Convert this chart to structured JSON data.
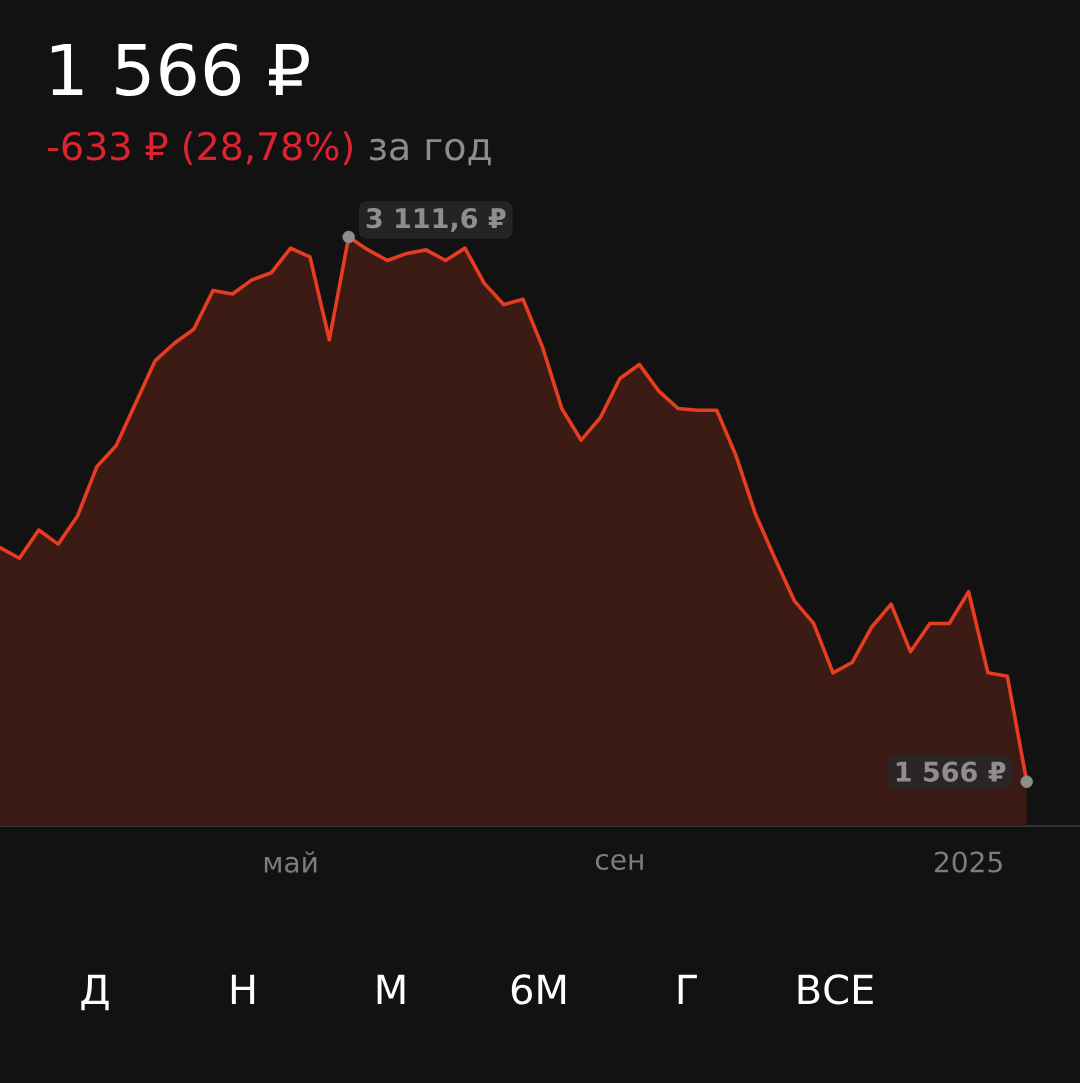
{
  "chart_data": {
    "type": "area",
    "title": "1 566 ₽",
    "subtitle": "-633 ₽ (28,78%)",
    "annotations": [
      "за год",
      "Д",
      "Н",
      "М",
      "6М",
      "Г",
      "ВСЕ"
    ],
    "categories": [
      null,
      null,
      null,
      null,
      null,
      null,
      null,
      null,
      null,
      null,
      null,
      null,
      null,
      null,
      null,
      "май",
      null,
      null,
      null,
      null,
      null,
      null,
      null,
      null,
      null,
      null,
      null,
      null,
      null,
      null,
      null,
      null,
      "сен",
      null,
      null,
      null,
      null,
      null,
      null,
      null,
      null,
      null,
      null,
      null,
      null,
      null,
      null,
      null,
      null,
      null,
      "2025",
      null,
      null,
      null
    ],
    "values": [
      2230,
      2200,
      2280,
      2240,
      2320,
      2460,
      2520,
      2640,
      2760,
      2810,
      2850,
      2960,
      2950,
      2990,
      3010,
      3080,
      3055,
      2820,
      3111.6,
      3075,
      3045,
      3065,
      3075,
      3045,
      3080,
      2980,
      2920,
      2935,
      2800,
      2625,
      2535,
      2600,
      2710,
      2750,
      2675,
      2625,
      2620,
      2620,
      2490,
      2325,
      2200,
      2080,
      2015,
      1875,
      1905,
      2005,
      2070,
      1935,
      2015,
      2015,
      2105,
      1875,
      1865,
      1566
    ],
    "color": "#e63d22",
    "value_labels": [
      null,
      null,
      null,
      null,
      null,
      null,
      null,
      null,
      null,
      null,
      null,
      null,
      null,
      null,
      null,
      null,
      null,
      null,
      "3 111,6 ₽",
      null,
      null,
      null,
      null,
      null,
      null,
      null,
      null,
      null,
      null,
      null,
      null,
      null,
      null,
      null,
      null,
      null,
      null,
      null,
      null,
      null,
      null,
      null,
      null,
      null,
      null,
      null,
      null,
      null,
      null,
      null,
      null,
      null,
      null,
      "1 566 ₽"
    ],
    "tick_labels": "x",
    "line_style": "solid"
  }
}
